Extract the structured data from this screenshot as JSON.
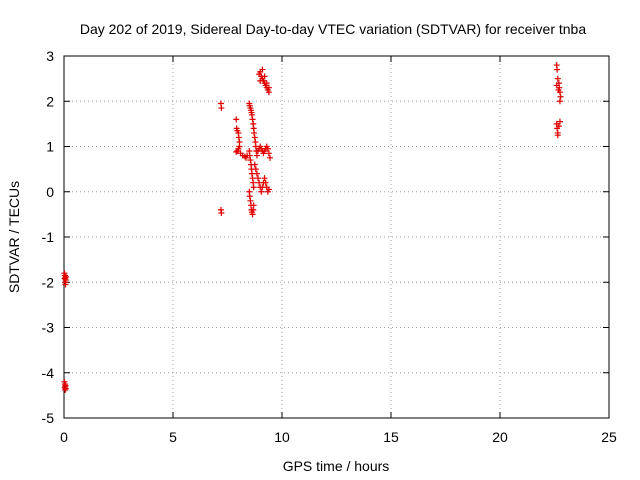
{
  "chart_data": {
    "type": "scatter",
    "title": "Day 202 of 2019, Sidereal Day-to-day VTEC variation (SDTVAR) for receiver tnba",
    "xlabel": "GPS time / hours",
    "ylabel": "SDTVAR / TECUs",
    "xlim": [
      0,
      25
    ],
    "ylim": [
      -5,
      3
    ],
    "xticks": [
      0,
      5,
      10,
      15,
      20,
      25
    ],
    "yticks": [
      -5,
      -4,
      -3,
      -2,
      -1,
      0,
      1,
      2,
      3
    ],
    "grid": true,
    "marker": "+",
    "color": "#e00000",
    "series": [
      {
        "name": "tnba",
        "points": [
          [
            0.02,
            -1.8
          ],
          [
            0.04,
            -1.85
          ],
          [
            0.06,
            -1.9
          ],
          [
            0.08,
            -1.95
          ],
          [
            0.05,
            -2.0
          ],
          [
            0.07,
            -2.05
          ],
          [
            0.03,
            -1.92
          ],
          [
            0.09,
            -1.88
          ],
          [
            0.02,
            -4.2
          ],
          [
            0.04,
            -4.25
          ],
          [
            0.06,
            -4.3
          ],
          [
            0.08,
            -4.35
          ],
          [
            0.05,
            -4.38
          ],
          [
            0.07,
            -4.28
          ],
          [
            0.03,
            -4.33
          ],
          [
            7.2,
            1.95
          ],
          [
            7.22,
            1.85
          ],
          [
            7.2,
            -0.4
          ],
          [
            7.22,
            -0.47
          ],
          [
            7.9,
            1.6
          ],
          [
            7.92,
            1.4
          ],
          [
            7.95,
            1.35
          ],
          [
            8.0,
            1.3
          ],
          [
            8.02,
            1.2
          ],
          [
            8.05,
            1.1
          ],
          [
            8.05,
            1.0
          ],
          [
            8.0,
            0.95
          ],
          [
            7.95,
            0.9
          ],
          [
            7.9,
            0.88
          ],
          [
            8.1,
            0.85
          ],
          [
            8.2,
            0.8
          ],
          [
            8.3,
            0.78
          ],
          [
            8.35,
            0.75
          ],
          [
            8.4,
            0.8
          ],
          [
            8.5,
            1.95
          ],
          [
            8.52,
            1.9
          ],
          [
            8.55,
            1.85
          ],
          [
            8.58,
            1.8
          ],
          [
            8.6,
            1.75
          ],
          [
            8.62,
            1.7
          ],
          [
            8.65,
            1.6
          ],
          [
            8.68,
            1.5
          ],
          [
            8.7,
            1.4
          ],
          [
            8.72,
            1.3
          ],
          [
            8.75,
            1.2
          ],
          [
            8.78,
            1.1
          ],
          [
            8.8,
            1.0
          ],
          [
            8.82,
            0.9
          ],
          [
            8.85,
            0.8
          ],
          [
            8.5,
            0.9
          ],
          [
            8.52,
            0.8
          ],
          [
            8.55,
            0.7
          ],
          [
            8.58,
            0.6
          ],
          [
            8.6,
            0.5
          ],
          [
            8.62,
            0.4
          ],
          [
            8.65,
            0.3
          ],
          [
            8.68,
            0.2
          ],
          [
            8.7,
            0.1
          ],
          [
            8.5,
            0.0
          ],
          [
            8.52,
            -0.1
          ],
          [
            8.55,
            -0.2
          ],
          [
            8.58,
            -0.3
          ],
          [
            8.6,
            -0.4
          ],
          [
            8.62,
            -0.45
          ],
          [
            8.65,
            -0.5
          ],
          [
            8.68,
            -0.4
          ],
          [
            8.7,
            -0.3
          ],
          [
            8.75,
            0.6
          ],
          [
            8.8,
            0.5
          ],
          [
            8.85,
            0.4
          ],
          [
            8.9,
            0.3
          ],
          [
            8.95,
            0.2
          ],
          [
            9.0,
            0.1
          ],
          [
            9.05,
            0.0
          ],
          [
            9.1,
            0.1
          ],
          [
            9.15,
            0.2
          ],
          [
            9.2,
            0.3
          ],
          [
            9.25,
            0.2
          ],
          [
            9.3,
            0.1
          ],
          [
            9.35,
            0.0
          ],
          [
            9.4,
            0.05
          ],
          [
            8.9,
            0.9
          ],
          [
            8.95,
            0.95
          ],
          [
            9.0,
            1.0
          ],
          [
            9.05,
            0.95
          ],
          [
            9.1,
            0.9
          ],
          [
            9.15,
            0.85
          ],
          [
            9.2,
            0.9
          ],
          [
            9.25,
            0.95
          ],
          [
            9.3,
            1.0
          ],
          [
            9.35,
            0.95
          ],
          [
            9.4,
            0.85
          ],
          [
            9.45,
            0.75
          ],
          [
            8.95,
            2.6
          ],
          [
            9.0,
            2.65
          ],
          [
            9.05,
            2.55
          ],
          [
            9.1,
            2.5
          ],
          [
            9.15,
            2.45
          ],
          [
            9.2,
            2.4
          ],
          [
            9.25,
            2.35
          ],
          [
            9.3,
            2.3
          ],
          [
            9.35,
            2.25
          ],
          [
            9.4,
            2.2
          ],
          [
            9.0,
            2.45
          ],
          [
            9.1,
            2.7
          ],
          [
            9.2,
            2.55
          ],
          [
            9.3,
            2.4
          ],
          [
            9.4,
            2.3
          ],
          [
            22.6,
            2.8
          ],
          [
            22.62,
            2.7
          ],
          [
            22.65,
            2.5
          ],
          [
            22.7,
            2.4
          ],
          [
            22.72,
            2.3
          ],
          [
            22.75,
            2.2
          ],
          [
            22.78,
            2.1
          ],
          [
            22.6,
            2.35
          ],
          [
            22.68,
            2.25
          ],
          [
            22.75,
            2.0
          ],
          [
            22.6,
            1.5
          ],
          [
            22.62,
            1.4
          ],
          [
            22.65,
            1.3
          ],
          [
            22.7,
            1.45
          ],
          [
            22.75,
            1.55
          ],
          [
            22.65,
            1.25
          ]
        ]
      }
    ]
  }
}
